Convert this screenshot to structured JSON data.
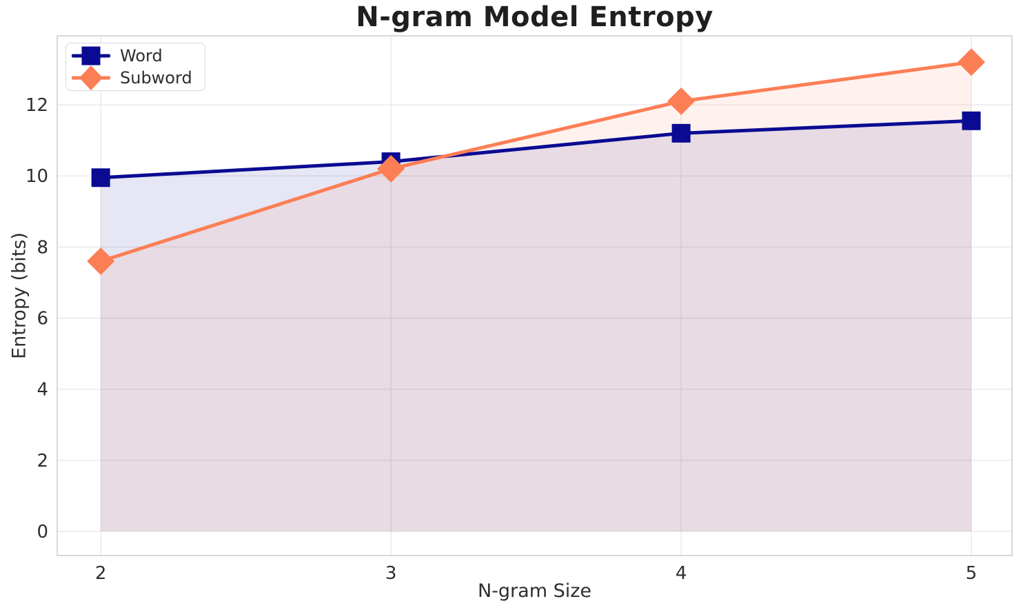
{
  "figure": {
    "background": "#FFFFFF"
  },
  "chart_data": {
    "type": "line",
    "title": "N-gram Model Entropy",
    "xlabel": "N-gram Size",
    "ylabel": "Entropy (bits)",
    "x": [
      2,
      3,
      4,
      5
    ],
    "x_tick_labels": [
      "2",
      "3",
      "4",
      "5"
    ],
    "y_ticks": [
      0,
      2,
      4,
      6,
      8,
      10,
      12
    ],
    "xlim": [
      1.85,
      5.14
    ],
    "ylim": [
      -0.68,
      13.94
    ],
    "grid": true,
    "legend_position": "upper-left",
    "series": [
      {
        "name": "Word",
        "marker": "square",
        "color": "#0A0A92",
        "fill": "rgba(10,10,146,0.10)",
        "values": [
          9.95,
          10.4,
          11.2,
          11.55
        ],
        "area_to_zero": true
      },
      {
        "name": "Subword",
        "marker": "diamond",
        "color": "#FC7E55",
        "fill": "rgba(252,126,85,0.10)",
        "values": [
          7.6,
          10.2,
          12.1,
          13.2
        ],
        "area_to_zero": true
      }
    ]
  },
  "style": {
    "grid_color": "#E8E8E8",
    "spine_color": "#CFCFCF",
    "tick_color": "#2E2E2E",
    "title_color": "#1F1F1F",
    "legend_border": "#D8D8D8",
    "legend_bg": "#FFFFFF"
  }
}
